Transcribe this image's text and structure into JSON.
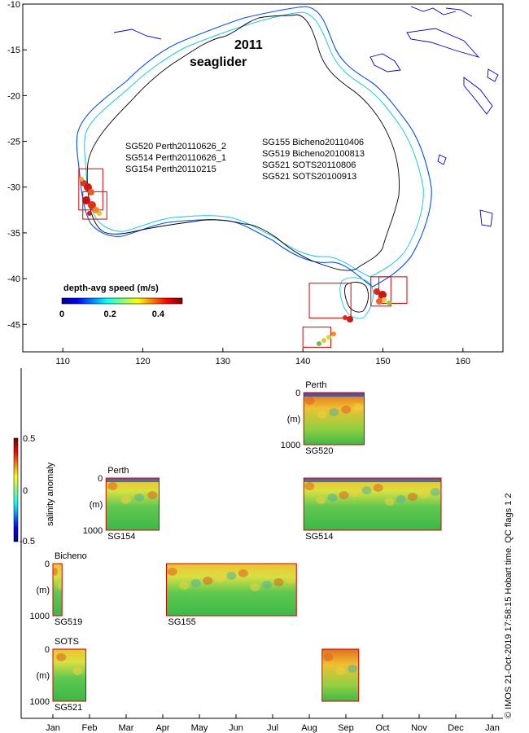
{
  "chart_data": [
    {
      "type": "map",
      "title": "2011",
      "subtitle": "seaglider",
      "xlim": [
        105,
        165
      ],
      "ylim": [
        -48,
        -10
      ],
      "xticks": [
        110,
        120,
        130,
        140,
        150,
        160
      ],
      "yticks": [
        -10,
        -15,
        -20,
        -25,
        -30,
        -35,
        -40,
        -45
      ],
      "deployments_west": [
        "SG520 Perth20110626_2",
        "SG514 Perth20110626_1",
        "SG154 Perth20110215"
      ],
      "deployments_east": [
        "SG155 Bicheno20110406",
        "SG519 Bicheno20100813",
        "SG521 SOTS20110806",
        "SG521 SOTS20100913"
      ],
      "colorbar": {
        "label": "depth-avg speed (m/s)",
        "range": [
          0,
          0.5
        ],
        "ticks": [
          0,
          0.2,
          0.4
        ],
        "tick_labels": [
          "0",
          "0.2",
          "0.4"
        ]
      },
      "regions": [
        {
          "lon": [
            112.0,
            115.0
          ],
          "lat": [
            -32.5,
            -28.0
          ]
        },
        {
          "lon": [
            112.5,
            115.5
          ],
          "lat": [
            -33.5,
            -30.5
          ]
        },
        {
          "lon": [
            140.8,
            146.0
          ],
          "lat": [
            -44.3,
            -40.5
          ]
        },
        {
          "lon": [
            140.0,
            143.5
          ],
          "lat": [
            -47.5,
            -45.3
          ]
        },
        {
          "lon": [
            148.5,
            151.0
          ],
          "lat": [
            -43.0,
            -39.8
          ]
        },
        {
          "lon": [
            149.5,
            153.0
          ],
          "lat": [
            -42.7,
            -39.8
          ]
        }
      ]
    },
    {
      "type": "heatmap",
      "xlim_months": [
        0,
        12
      ],
      "month_labels": [
        "Jan",
        "Feb",
        "Mar",
        "Apr",
        "May",
        "Jun",
        "Jul",
        "Aug",
        "Sep",
        "Oct",
        "Nov",
        "Dec",
        "Jan"
      ],
      "depth_range_m": [
        0,
        1000
      ],
      "depth_tick_labels": [
        "0",
        "(m)",
        "1000"
      ],
      "colorbar": {
        "label": "salinity anomaly",
        "range": [
          -0.5,
          0.5
        ],
        "tick_labels": [
          "0.5",
          "0",
          "-0.5"
        ]
      },
      "rows": [
        {
          "site": "Perth",
          "sections": [
            {
              "glider": "SG520",
              "start": 6.85,
              "end": 8.5
            }
          ]
        },
        {
          "site": "Perth",
          "sections": [
            {
              "glider": "SG154",
              "start": 1.45,
              "end": 2.9
            },
            {
              "glider": "SG514",
              "start": 6.85,
              "end": 10.6
            }
          ]
        },
        {
          "site": "Bicheno",
          "sections": [
            {
              "glider": "SG519",
              "start": 0.0,
              "end": 0.25
            },
            {
              "glider": "SG155",
              "start": 3.1,
              "end": 6.65
            }
          ]
        },
        {
          "site": "SOTS",
          "sections": [
            {
              "glider": "SG521",
              "start": 0.0,
              "end": 0.9
            },
            {
              "glider": "",
              "start": 7.35,
              "end": 8.35
            }
          ]
        }
      ]
    }
  ],
  "footer": {
    "credit": "© IMOS 21-Oct-2019 17:58:15 Hobart time. QC flags 1  2"
  },
  "colors": {
    "coast": "#000000",
    "isobath_shallow": "#19c8e6",
    "isobath_deep": "#0050ff",
    "island_outline": "#0000c8",
    "box": "#d40000"
  }
}
